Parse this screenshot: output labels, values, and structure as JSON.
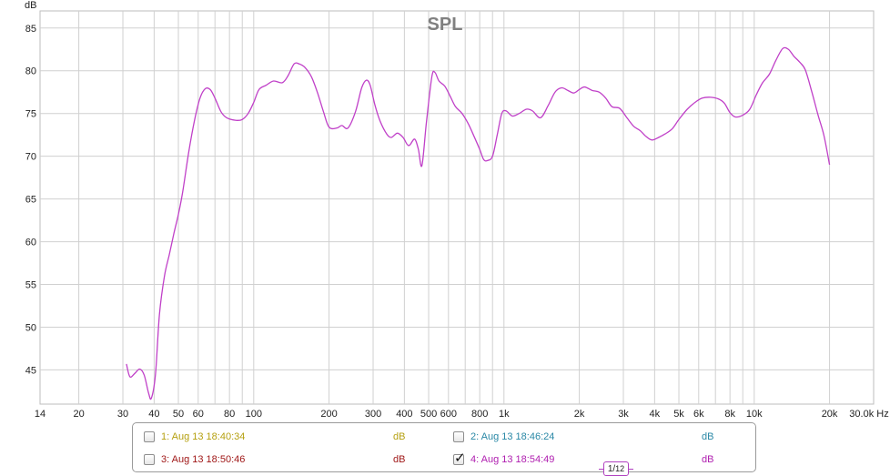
{
  "chart_data": {
    "type": "line",
    "title": "SPL",
    "ylabel": "dB",
    "xlabel": "Hz",
    "x_scale": "log",
    "xlim": [
      14,
      30000
    ],
    "ylim": [
      41,
      87
    ],
    "grid": true,
    "y_ticks": [
      45,
      50,
      55,
      60,
      65,
      70,
      75,
      80,
      85
    ],
    "x_ticks": [
      {
        "value": 14,
        "label": "14"
      },
      {
        "value": 20,
        "label": "20"
      },
      {
        "value": 30,
        "label": "30"
      },
      {
        "value": 40,
        "label": "40"
      },
      {
        "value": 50,
        "label": "50"
      },
      {
        "value": 60,
        "label": "60"
      },
      {
        "value": 80,
        "label": "80"
      },
      {
        "value": 100,
        "label": "100"
      },
      {
        "value": 200,
        "label": "200"
      },
      {
        "value": 300,
        "label": "300"
      },
      {
        "value": 400,
        "label": "400"
      },
      {
        "value": 500,
        "label": "500"
      },
      {
        "value": 600,
        "label": "600"
      },
      {
        "value": 800,
        "label": "800"
      },
      {
        "value": 1000,
        "label": "1k"
      },
      {
        "value": 2000,
        "label": "2k"
      },
      {
        "value": 3000,
        "label": "3k"
      },
      {
        "value": 4000,
        "label": "4k"
      },
      {
        "value": 5000,
        "label": "5k"
      },
      {
        "value": 6000,
        "label": "6k"
      },
      {
        "value": 8000,
        "label": "8k"
      },
      {
        "value": 10000,
        "label": "10k"
      },
      {
        "value": 20000,
        "label": "20k"
      },
      {
        "value": 30000,
        "label": "30.0k Hz"
      }
    ],
    "minor_x_gridlines": [
      70,
      90,
      700,
      900,
      7000,
      9000
    ],
    "series": [
      {
        "name": "4: Aug 13 18:54:49",
        "color": "#c040c8",
        "points": [
          [
            31,
            45.7
          ],
          [
            32,
            44.2
          ],
          [
            33.5,
            44.6
          ],
          [
            35,
            45.1
          ],
          [
            36.5,
            44.4
          ],
          [
            38,
            42.3
          ],
          [
            39,
            41.7
          ],
          [
            40.5,
            44.5
          ],
          [
            42,
            51.5
          ],
          [
            44,
            56
          ],
          [
            46,
            58.5
          ],
          [
            48,
            61
          ],
          [
            50,
            63.2
          ],
          [
            52,
            65.8
          ],
          [
            55,
            70.5
          ],
          [
            58,
            74.2
          ],
          [
            61,
            76.8
          ],
          [
            64,
            77.9
          ],
          [
            67,
            77.8
          ],
          [
            70,
            76.8
          ],
          [
            74,
            75.2
          ],
          [
            78,
            74.5
          ],
          [
            85,
            74.2
          ],
          [
            90,
            74.3
          ],
          [
            95,
            75
          ],
          [
            100,
            76.3
          ],
          [
            105,
            77.8
          ],
          [
            112,
            78.3
          ],
          [
            120,
            78.8
          ],
          [
            130,
            78.6
          ],
          [
            137,
            79.4
          ],
          [
            145,
            80.8
          ],
          [
            152,
            80.8
          ],
          [
            160,
            80.4
          ],
          [
            170,
            79.3
          ],
          [
            180,
            77.4
          ],
          [
            190,
            75.2
          ],
          [
            200,
            73.4
          ],
          [
            215,
            73.3
          ],
          [
            225,
            73.6
          ],
          [
            238,
            73.3
          ],
          [
            255,
            75.2
          ],
          [
            270,
            78
          ],
          [
            282,
            78.9
          ],
          [
            292,
            78.3
          ],
          [
            305,
            76
          ],
          [
            320,
            74.1
          ],
          [
            340,
            72.6
          ],
          [
            355,
            72.2
          ],
          [
            375,
            72.7
          ],
          [
            395,
            72.2
          ],
          [
            410,
            71.4
          ],
          [
            420,
            71.3
          ],
          [
            440,
            72
          ],
          [
            455,
            70.8
          ],
          [
            470,
            68.9
          ],
          [
            490,
            74
          ],
          [
            515,
            79.3
          ],
          [
            530,
            79.8
          ],
          [
            550,
            78.8
          ],
          [
            580,
            78.2
          ],
          [
            610,
            77
          ],
          [
            640,
            75.8
          ],
          [
            680,
            75
          ],
          [
            720,
            73.8
          ],
          [
            760,
            72.3
          ],
          [
            800,
            70.8
          ],
          [
            830,
            69.6
          ],
          [
            860,
            69.5
          ],
          [
            900,
            70
          ],
          [
            940,
            72.5
          ],
          [
            980,
            75
          ],
          [
            1020,
            75.3
          ],
          [
            1080,
            74.7
          ],
          [
            1150,
            75
          ],
          [
            1230,
            75.5
          ],
          [
            1300,
            75.3
          ],
          [
            1400,
            74.5
          ],
          [
            1500,
            75.9
          ],
          [
            1600,
            77.5
          ],
          [
            1700,
            78
          ],
          [
            1800,
            77.7
          ],
          [
            1900,
            77.4
          ],
          [
            2000,
            77.8
          ],
          [
            2100,
            78.1
          ],
          [
            2250,
            77.7
          ],
          [
            2400,
            77.5
          ],
          [
            2550,
            76.8
          ],
          [
            2700,
            75.8
          ],
          [
            2900,
            75.6
          ],
          [
            3100,
            74.5
          ],
          [
            3300,
            73.5
          ],
          [
            3500,
            73
          ],
          [
            3700,
            72.3
          ],
          [
            3900,
            71.9
          ],
          [
            4150,
            72.2
          ],
          [
            4400,
            72.6
          ],
          [
            4700,
            73.2
          ],
          [
            5000,
            74.3
          ],
          [
            5400,
            75.5
          ],
          [
            5800,
            76.3
          ],
          [
            6200,
            76.8
          ],
          [
            6700,
            76.9
          ],
          [
            7200,
            76.7
          ],
          [
            7600,
            76.2
          ],
          [
            8000,
            75.1
          ],
          [
            8400,
            74.6
          ],
          [
            9000,
            74.8
          ],
          [
            9600,
            75.5
          ],
          [
            10200,
            77.2
          ],
          [
            10800,
            78.6
          ],
          [
            11500,
            79.6
          ],
          [
            12200,
            81.2
          ],
          [
            13000,
            82.6
          ],
          [
            13700,
            82.5
          ],
          [
            14400,
            81.7
          ],
          [
            15200,
            81
          ],
          [
            16000,
            80.1
          ],
          [
            17000,
            77.5
          ],
          [
            18000,
            74.8
          ],
          [
            19000,
            72.4
          ],
          [
            20000,
            69
          ]
        ]
      }
    ]
  },
  "legend": {
    "items": [
      {
        "label": "1: Aug 13 18:40:34",
        "unit": "dB",
        "checked": false,
        "color": "#b5a010"
      },
      {
        "label": "2: Aug 13 18:46:24",
        "unit": "dB",
        "checked": false,
        "color": "#2a88a6"
      },
      {
        "label": "3: Aug 13 18:50:46",
        "unit": "dB",
        "checked": false,
        "color": "#a01818"
      },
      {
        "label": "4: Aug 13 18:54:49",
        "unit": "dB",
        "checked": true,
        "color": "#b020b0"
      }
    ],
    "smoothing_numerator": "1",
    "smoothing_denominator": "12"
  }
}
